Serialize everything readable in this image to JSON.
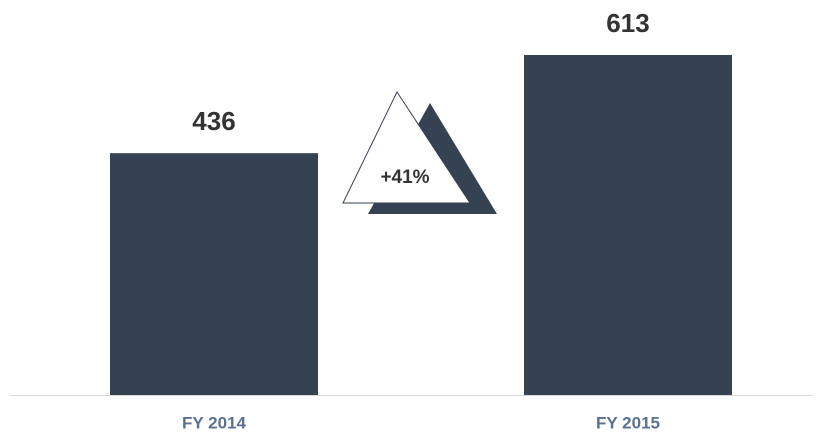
{
  "chart_data": {
    "type": "bar",
    "categories": [
      "FY 2014",
      "FY 2015"
    ],
    "values": [
      436,
      613
    ],
    "color": "#354252",
    "annotation": "+41%"
  }
}
